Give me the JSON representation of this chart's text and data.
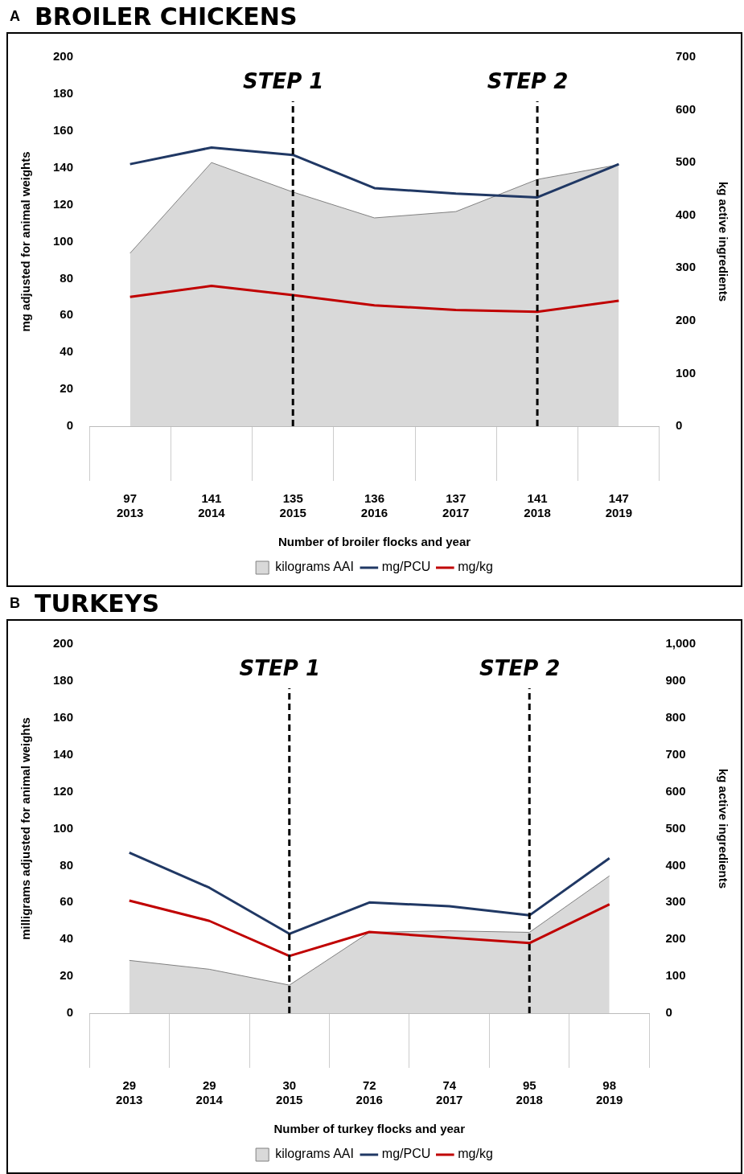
{
  "chart_data": [
    {
      "type": "line",
      "title": "BROILER CHICKENS",
      "annotations": [
        "A"
      ],
      "xlabel": "Number of broiler flocks and year",
      "ylabel": "mg adjusted for animal weights",
      "y2label": "kg active ingredients",
      "categories": [
        "97\n2013",
        "141\n2014",
        "135\n2015",
        "136\n2016",
        "137\n2017",
        "141\n2018",
        "147\n2019"
      ],
      "ylim": [
        0,
        200
      ],
      "yticks": [
        0,
        20,
        40,
        60,
        80,
        100,
        120,
        140,
        160,
        180,
        200
      ],
      "y2lim": [
        0,
        700
      ],
      "y2ticks": [
        0,
        100,
        200,
        300,
        400,
        500,
        600,
        700
      ],
      "series": [
        {
          "name": "kilograms AAI",
          "type": "area",
          "axis": "y2",
          "color": "#d9d9d9",
          "values": [
            328,
            500,
            444,
            395,
            407,
            468,
            496
          ]
        },
        {
          "name": "mg/PCU",
          "type": "line",
          "color": "#203864",
          "values": [
            142,
            151,
            147,
            129,
            126,
            124,
            142
          ]
        },
        {
          "name": "mg/kg",
          "type": "line",
          "color": "#c00000",
          "values": [
            70,
            76,
            71,
            65.5,
            63,
            62,
            68
          ]
        }
      ],
      "ref_lines": [
        {
          "axis": "x",
          "value": "135\n2015",
          "label": "STEP 1",
          "line_style": "dashed",
          "color": "#000000"
        },
        {
          "axis": "x",
          "value": "141\n2018",
          "label": "STEP 2",
          "line_style": "dashed",
          "color": "#000000"
        }
      ],
      "legend": "bottom",
      "marker": "none"
    },
    {
      "type": "line",
      "title": "TURKEYS",
      "annotations": [
        "B"
      ],
      "xlabel": "Number of turkey flocks and year",
      "ylabel": "milligrams adjusted for animal weights",
      "y2label": "kg active ingredients",
      "categories": [
        "29\n2013",
        "29\n2014",
        "30\n2015",
        "72\n2016",
        "74\n2017",
        "95\n2018",
        "98\n2019"
      ],
      "ylim": [
        0,
        200
      ],
      "yticks": [
        0,
        20,
        40,
        60,
        80,
        100,
        120,
        140,
        160,
        180,
        200
      ],
      "y2lim": [
        0,
        1000
      ],
      "y2ticks": [
        0,
        100,
        200,
        300,
        400,
        500,
        600,
        700,
        800,
        900,
        {
          "value": 1000,
          "label": "1,000"
        }
      ],
      "series": [
        {
          "name": "kilograms AAI",
          "type": "area",
          "axis": "y2",
          "color": "#d9d9d9",
          "values": [
            143,
            119,
            76,
            219,
            223,
            219,
            372
          ]
        },
        {
          "name": "mg/PCU",
          "type": "line",
          "color": "#203864",
          "values": [
            87,
            68,
            43,
            60,
            58,
            53,
            84
          ]
        },
        {
          "name": "mg/kg",
          "type": "line",
          "color": "#c00000",
          "values": [
            61,
            50,
            31,
            44,
            41,
            38,
            59
          ]
        }
      ],
      "ref_lines": [
        {
          "axis": "x",
          "value": "30\n2015",
          "label": "STEP 1",
          "line_style": "dashed",
          "color": "#000000"
        },
        {
          "axis": "x",
          "value": "95\n2018",
          "label": "STEP 2",
          "line_style": "dashed",
          "color": "#000000"
        }
      ],
      "legend": "bottom",
      "marker": "none"
    }
  ]
}
